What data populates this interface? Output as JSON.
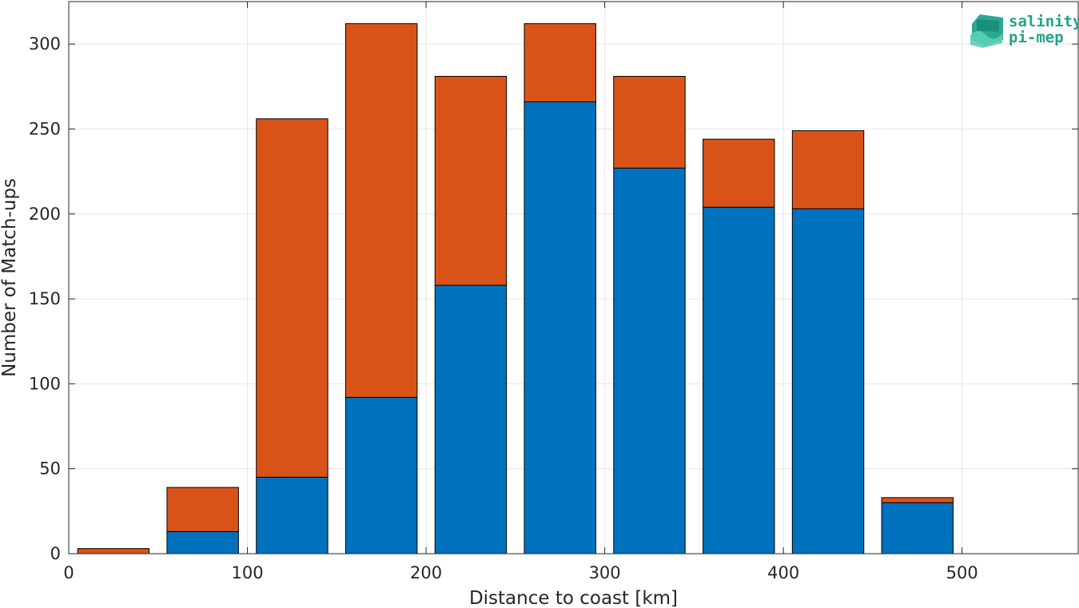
{
  "chart_data": {
    "type": "bar",
    "stacked": true,
    "x": [
      25,
      75,
      125,
      175,
      225,
      275,
      325,
      375,
      425,
      475,
      525
    ],
    "series": [
      {
        "values": [
          0,
          13,
          45,
          92,
          158,
          266,
          227,
          204,
          203,
          30,
          0
        ],
        "color": "#0072bd"
      },
      {
        "values": [
          3,
          26,
          211,
          220,
          123,
          46,
          54,
          40,
          46,
          3,
          0
        ],
        "color": "#d95319"
      }
    ],
    "xlabel": "Distance to coast [km]",
    "ylabel": "Number of Match-ups",
    "xlim": [
      0,
      565
    ],
    "ylim": [
      0,
      325
    ],
    "xticks": [
      0,
      100,
      200,
      300,
      400,
      500
    ],
    "yticks": [
      0,
      50,
      100,
      150,
      200,
      250,
      300
    ],
    "grid": true
  },
  "logo": {
    "line1": "salinity",
    "line2": "pi-mep",
    "icon": "wave-logo-icon",
    "color": "#21a38a"
  }
}
